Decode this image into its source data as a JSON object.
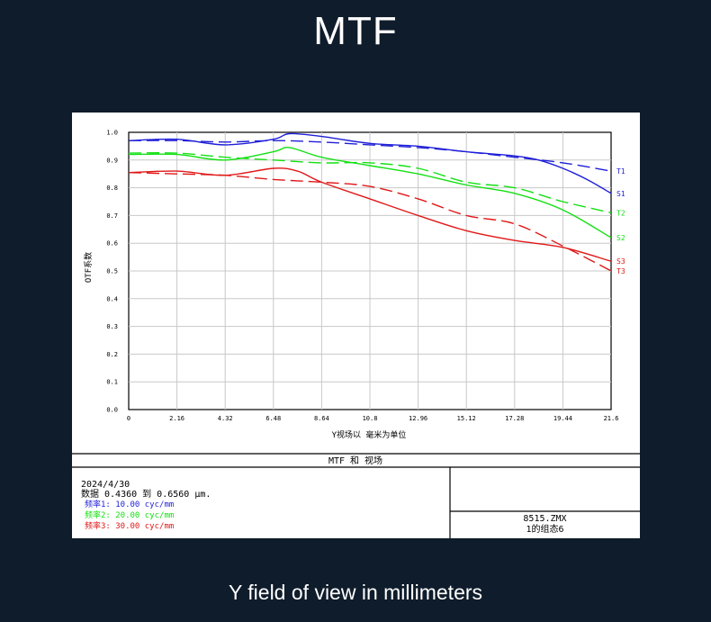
{
  "page": {
    "title": "MTF",
    "caption": "Y field of view in millimeters"
  },
  "colors": {
    "background": "#0f1c2b",
    "blue": "#1f1fd8",
    "green": "#14e014",
    "red": "#e01818"
  },
  "footer": {
    "panel_title": "MTF 和 视场",
    "date": "2024/4/30",
    "data_range": "数据 0.4360 到 0.6560 μm.",
    "freq1": "频率1:  10.00 cyc/mm",
    "freq2": "频率2:  20.00 cyc/mm",
    "freq3": "频率3:  30.00 cyc/mm",
    "file_name": "8515.ZMX",
    "config": "1的组态6"
  },
  "chart_data": {
    "type": "line",
    "xlabel": "Y视场以 毫米为单位",
    "ylabel": "OTF系数",
    "xlim": [
      0,
      21.6
    ],
    "ylim": [
      0,
      1.0
    ],
    "x_ticks": [
      "0",
      "2.16",
      "4.32",
      "6.48",
      "8.64",
      "10.8",
      "12.96",
      "15.12",
      "17.28",
      "19.44",
      "21.6"
    ],
    "y_ticks": [
      "0.0",
      "0.1",
      "0.2",
      "0.3",
      "0.4",
      "0.5",
      "0.6",
      "0.7",
      "0.8",
      "0.9",
      "1.0"
    ],
    "grid": true,
    "series": [
      {
        "name": "T1",
        "color": "#1f1fd8",
        "dash": true,
        "x": [
          0,
          2.16,
          4.32,
          6.48,
          8.64,
          10.8,
          12.96,
          15.12,
          17.28,
          19.44,
          21.6
        ],
        "y": [
          0.97,
          0.97,
          0.965,
          0.97,
          0.965,
          0.955,
          0.945,
          0.93,
          0.91,
          0.89,
          0.86
        ]
      },
      {
        "name": "S1",
        "color": "#1f1fd8",
        "dash": false,
        "x": [
          0,
          2.16,
          4.32,
          6.48,
          7.2,
          8.64,
          10.8,
          12.96,
          15.12,
          17.28,
          18.36,
          19.44,
          20.52,
          21.6
        ],
        "y": [
          0.97,
          0.975,
          0.955,
          0.975,
          0.995,
          0.985,
          0.96,
          0.95,
          0.93,
          0.915,
          0.9,
          0.87,
          0.83,
          0.78
        ]
      },
      {
        "name": "T2",
        "color": "#14e014",
        "dash": true,
        "x": [
          0,
          2.16,
          4.32,
          6.48,
          8.64,
          10.8,
          12.96,
          15.12,
          17.28,
          19.44,
          21.6
        ],
        "y": [
          0.925,
          0.925,
          0.91,
          0.9,
          0.89,
          0.89,
          0.87,
          0.82,
          0.8,
          0.75,
          0.71
        ]
      },
      {
        "name": "S2",
        "color": "#14e014",
        "dash": false,
        "x": [
          0,
          2.16,
          4.32,
          6.48,
          7.2,
          8.64,
          10.8,
          12.96,
          15.12,
          17.28,
          19.44,
          21.6
        ],
        "y": [
          0.92,
          0.92,
          0.9,
          0.93,
          0.945,
          0.91,
          0.88,
          0.85,
          0.81,
          0.78,
          0.72,
          0.62
        ]
      },
      {
        "name": "S3",
        "color": "#e01818",
        "dash": false,
        "x": [
          0,
          2.16,
          4.32,
          6.48,
          7.56,
          8.64,
          10.8,
          12.96,
          15.12,
          17.28,
          19.44,
          21.6
        ],
        "y": [
          0.855,
          0.86,
          0.845,
          0.87,
          0.86,
          0.82,
          0.76,
          0.7,
          0.645,
          0.61,
          0.585,
          0.535
        ]
      },
      {
        "name": "T3",
        "color": "#e01818",
        "dash": true,
        "x": [
          0,
          2.16,
          4.32,
          6.48,
          8.64,
          10.8,
          12.96,
          15.12,
          17.28,
          19.44,
          21.6
        ],
        "y": [
          0.855,
          0.85,
          0.845,
          0.83,
          0.82,
          0.805,
          0.76,
          0.7,
          0.67,
          0.59,
          0.5
        ]
      }
    ]
  }
}
